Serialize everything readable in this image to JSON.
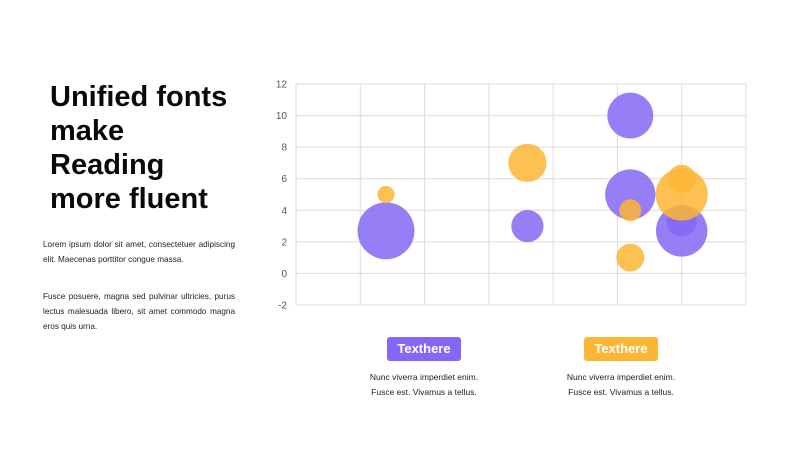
{
  "slide": {
    "title": "Unified fonts\nmake\nReading\nmore fluent",
    "paragraph1": "Lorem ipsum dolor sit amet, consectetuer adipiscing elit. Maecenas porttitor congue massa.",
    "paragraph2": "Fusce posuere, magna sed pulvinar ultricies, purus lectus malesuada libero, sit amet commodo magna eros quis urna."
  },
  "legend": [
    {
      "label": "Texthere",
      "text": "Nunc viverra imperdiet enim.\nFusce est. Vivamus a tellus.",
      "color": "#8468f5"
    },
    {
      "label": "Texthere",
      "text": "Nunc viverra imperdiet enim.\nFusce est. Vivamus a tellus.",
      "color": "#fbb634"
    }
  ],
  "chart_data": {
    "type": "scatter",
    "subtype": "bubble",
    "title": "",
    "xlabel": "",
    "ylabel": "",
    "ylim": [
      -2,
      12
    ],
    "yticks": [
      -2,
      0,
      2,
      4,
      6,
      8,
      10,
      12
    ],
    "xlim": [
      0,
      7
    ],
    "grid": true,
    "x_tick_labels_shown": false,
    "series": [
      {
        "color": "#8468f5",
        "points": [
          {
            "x": 1.4,
            "y": 2.7,
            "size": 10.0
          },
          {
            "x": 3.6,
            "y": 3.0,
            "size": 3.2
          },
          {
            "x": 5.2,
            "y": 10.0,
            "size": 6.5
          },
          {
            "x": 5.2,
            "y": 5.0,
            "size": 7.8
          },
          {
            "x": 6.0,
            "y": 2.7,
            "size": 8.2
          },
          {
            "x": 6.0,
            "y": 3.3,
            "size": 2.8
          }
        ]
      },
      {
        "color": "#fbb634",
        "points": [
          {
            "x": 1.4,
            "y": 5.0,
            "size": 0.9
          },
          {
            "x": 3.6,
            "y": 7.0,
            "size": 4.5
          },
          {
            "x": 5.2,
            "y": 4.0,
            "size": 1.5
          },
          {
            "x": 5.2,
            "y": 1.0,
            "size": 2.4
          },
          {
            "x": 6.0,
            "y": 5.0,
            "size": 8.4
          },
          {
            "x": 6.0,
            "y": 6.0,
            "size": 2.4
          }
        ]
      }
    ]
  }
}
